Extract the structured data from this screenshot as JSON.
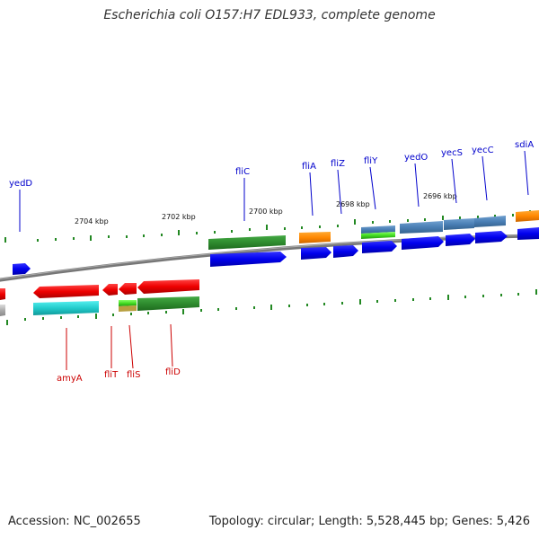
{
  "title": "Escherichia coli O157:H7 EDL933, complete genome",
  "footer": {
    "accession": "Accession: NC_002655",
    "info": "Topology: circular; Length: 5,528,445 bp; Genes: 5,426"
  },
  "ruler_labels": [
    "2704 kbp",
    "2702 kbp",
    "2700 kbp",
    "2698 kbp",
    "2696 kbp"
  ],
  "gene_labels_top": [
    "yedD",
    "fliC",
    "fliA",
    "fliZ",
    "fliY",
    "yedO",
    "yecS",
    "yecC",
    "sdiA"
  ],
  "gene_labels_bottom": [
    "amyA",
    "fliT",
    "fliS",
    "fliD"
  ],
  "colors": {
    "forward_cds": "#0000ee",
    "reverse_cds": "#ee0000",
    "top_label": "#0000cc",
    "bottom_label": "#cc0000",
    "tick": "#228822",
    "backbone": "#777777",
    "orange": "#ff8800",
    "steelblue": "#4a7fb5",
    "darkgreen": "#2e8b2e",
    "cyan": "#22cccc",
    "lime": "#44dd22"
  }
}
